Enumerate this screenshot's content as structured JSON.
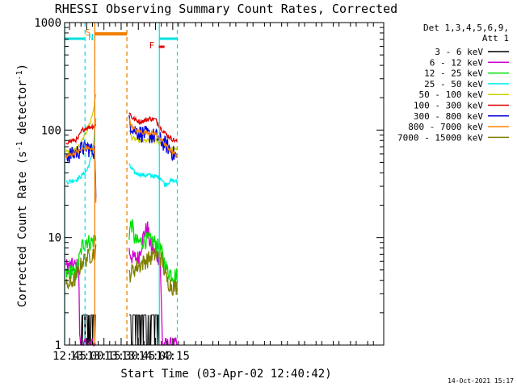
{
  "chart_data": {
    "type": "line",
    "title": "RHESSI Observing Summary Count Rates, Corrected",
    "xlabel": "Start Time (03-Apr-02 12:40:42)",
    "ylabel": "Corrected Count Rate (s",
    "ylabel_sup1": "-1",
    "ylabel_mid": " detector",
    "ylabel_sup2": "-1",
    "ylabel_end": ")",
    "yscale": "log",
    "ylim": [
      1,
      1000
    ],
    "y_ticks": [
      1,
      10,
      100,
      1000
    ],
    "y_tick_labels": [
      "1",
      "10",
      "100",
      "1000"
    ],
    "xlim_minutes": [
      760.7,
      1039.0
    ],
    "x_ticks_minutes": [
      765,
      780,
      795,
      810,
      825,
      840,
      855
    ],
    "x_tick_labels": [
      "12:45",
      "13:00",
      "13:15",
      "13:30",
      "13:45",
      "14:00",
      "14:15"
    ],
    "legend": {
      "placement": "right",
      "title_line1": "Det 1,3,4,5,6,9,",
      "title_line2": "Att 1",
      "entries": [
        {
          "label": "3 - 6 keV",
          "color": "#000000"
        },
        {
          "label": "6 - 12 keV",
          "color": "#d000d0"
        },
        {
          "label": "12 - 25 keV",
          "color": "#00e000"
        },
        {
          "label": "25 - 50 keV",
          "color": "#00f0f0"
        },
        {
          "label": "50 - 100 keV",
          "color": "#d0d000"
        },
        {
          "label": "100 - 300 keV",
          "color": "#e00000"
        },
        {
          "label": "300 - 800 keV",
          "color": "#0000e0"
        },
        {
          "label": "800 - 7000 keV",
          "color": "#ff8000"
        },
        {
          "label": "7000 - 15000 keV",
          "color": "#808000"
        }
      ]
    },
    "annotations": {
      "night_label": "N",
      "saa_label": "S",
      "flare_label": "F",
      "night_color": "#00e0e0",
      "saa_color": "#f08000",
      "flare_color": "#e00000",
      "night_intervals": [
        [
          760.7,
          778.5
        ],
        [
          843.3,
          859.0
        ]
      ],
      "saa_interval": [
        787.0,
        815.0
      ],
      "flare_time": 817.5,
      "night_marker_times": [
        760.7,
        778.5,
        843.3,
        859.0
      ]
    },
    "gap": [
      788.3,
      816.9
    ],
    "series": [
      {
        "name": "3 - 6 keV",
        "color": "#000000",
        "style": "noisy-low",
        "segments": [
          {
            "x": [
              762,
              770,
              772,
              774,
              776,
              778,
              780,
              782,
              784,
              786,
              788
            ],
            "y": [
              1,
              1,
              1,
              1,
              1.9,
              1.9,
              1.9,
              1.9,
              1.9,
              1.9,
              1.9
            ]
          },
          {
            "x": [
              817,
              820,
              825,
              830,
              835,
              840,
              842,
              845,
              850,
              855,
              859
            ],
            "y": [
              1.9,
              1.9,
              1.9,
              1.9,
              1.9,
              1.9,
              1.9,
              1.0,
              1.0,
              1.0,
              1.0
            ]
          }
        ]
      },
      {
        "name": "6 - 12 keV",
        "color": "#d000d0",
        "style": "noisy",
        "segments": [
          {
            "x": [
              762,
              768,
              773,
              774,
              776,
              778,
              780,
              782,
              784,
              786,
              788
            ],
            "y": [
              5.5,
              5.5,
              5.5,
              1.0,
              1.0,
              1.0,
              1.0,
              1.0,
              1.0,
              1.0,
              1.0
            ]
          },
          {
            "x": [
              817,
              820,
              825,
              830,
              833,
              835,
              840,
              844,
              846,
              850,
              855,
              859
            ],
            "y": [
              7.5,
              6.5,
              6.5,
              11.0,
              12.5,
              9.0,
              7.0,
              6.5,
              1.0,
              1.0,
              1.0,
              1.0
            ]
          }
        ]
      },
      {
        "name": "12 - 25 keV",
        "color": "#00e000",
        "style": "noisy",
        "segments": [
          {
            "x": [
              762,
              766,
              770,
              773,
              776,
              780,
              783,
              786,
              788
            ],
            "y": [
              4.5,
              5.0,
              4.5,
              6.0,
              8.5,
              9.5,
              9.0,
              9.5,
              10.0
            ]
          },
          {
            "x": [
              817,
              819,
              822,
              825,
              830,
              835,
              840,
              845,
              850,
              855,
              859
            ],
            "y": [
              11.0,
              14.0,
              9.5,
              9.0,
              9.5,
              9.5,
              9.0,
              7.5,
              5.0,
              4.5,
              4.5
            ]
          }
        ]
      },
      {
        "name": "25 - 50 keV",
        "color": "#00f0f0",
        "style": "smooth",
        "segments": [
          {
            "x": [
              762,
              768,
              772,
              776,
              780,
              784,
              786,
              788
            ],
            "y": [
              33,
              34,
              35,
              38,
              42,
              55,
              75,
              130
            ]
          },
          {
            "x": [
              817,
              819,
              822,
              826,
              830,
              835,
              840,
              845,
              848,
              852,
              855,
              859
            ],
            "y": [
              47,
              44,
              40,
              39,
              38,
              38,
              37,
              36,
              31,
              33,
              34,
              33
            ]
          }
        ]
      },
      {
        "name": "50 - 100 keV",
        "color": "#d0d000",
        "style": "smooth",
        "segments": [
          {
            "x": [
              762,
              766,
              770,
              774,
              778,
              782,
              785,
              787,
              788
            ],
            "y": [
              64,
              65,
              66,
              72,
              88,
              110,
              140,
              180,
              220
            ]
          },
          {
            "x": [
              817,
              819,
              822,
              826,
              830,
              835,
              840,
              845,
              850,
              855,
              859
            ],
            "y": [
              100,
              86,
              82,
              80,
              79,
              80,
              80,
              76,
              70,
              67,
              65
            ]
          }
        ]
      },
      {
        "name": "100 - 300 keV",
        "color": "#e00000",
        "style": "smooth",
        "segments": [
          {
            "x": [
              762,
              768,
              772,
              776,
              780,
              784,
              788
            ],
            "y": [
              77,
              80,
              82,
              100,
              105,
              108,
              110
            ]
          },
          {
            "x": [
              817,
              819,
              822,
              826,
              830,
              835,
              840,
              845,
              850,
              855,
              859
            ],
            "y": [
              150,
              132,
              125,
              120,
              122,
              128,
              125,
              103,
              90,
              82,
              78
            ]
          }
        ]
      },
      {
        "name": "300 - 800 keV",
        "color": "#0000e0",
        "style": "noisy",
        "segments": [
          {
            "x": [
              762,
              768,
              772,
              776,
              780,
              784,
              787,
              788
            ],
            "y": [
              58,
              60,
              63,
              68,
              70,
              65,
              65,
              22
            ]
          },
          {
            "x": [
              817,
              819,
              822,
              826,
              830,
              835,
              840,
              845,
              850,
              855,
              859
            ],
            "y": [
              120,
              112,
              100,
              95,
              93,
              90,
              88,
              80,
              72,
              62,
              55
            ]
          }
        ]
      },
      {
        "name": "800 - 7000 keV",
        "color": "#ff8000",
        "style": "smooth",
        "segments": [
          {
            "x": [
              762,
              768,
              772,
              776,
              780,
              784,
              787,
              788
            ],
            "y": [
              57,
              60,
              63,
              66,
              69,
              66,
              64,
              22
            ]
          },
          {
            "x": [
              817,
              819,
              822,
              826,
              830,
              835,
              840,
              845,
              850,
              855,
              859
            ],
            "y": [
              125,
              110,
              100,
              97,
              95,
              95,
              92,
              80,
              70,
              62,
              58
            ]
          }
        ]
      },
      {
        "name": "7000 - 15000 keV",
        "color": "#808000",
        "style": "noisy",
        "segments": [
          {
            "x": [
              762,
              766,
              770,
              773,
              776,
              780,
              784,
              788
            ],
            "y": [
              3.5,
              3.8,
              4.2,
              5.0,
              6.0,
              6.5,
              7.0,
              7.5
            ]
          },
          {
            "x": [
              817,
              820,
              825,
              830,
              835,
              840,
              845,
              850,
              855,
              859
            ],
            "y": [
              4.5,
              5.0,
              5.5,
              6.0,
              6.5,
              7.0,
              6.5,
              4.0,
              3.5,
              3.5
            ]
          }
        ]
      }
    ]
  },
  "footer": {
    "timestamp": "14-Oct-2021 15:17"
  }
}
